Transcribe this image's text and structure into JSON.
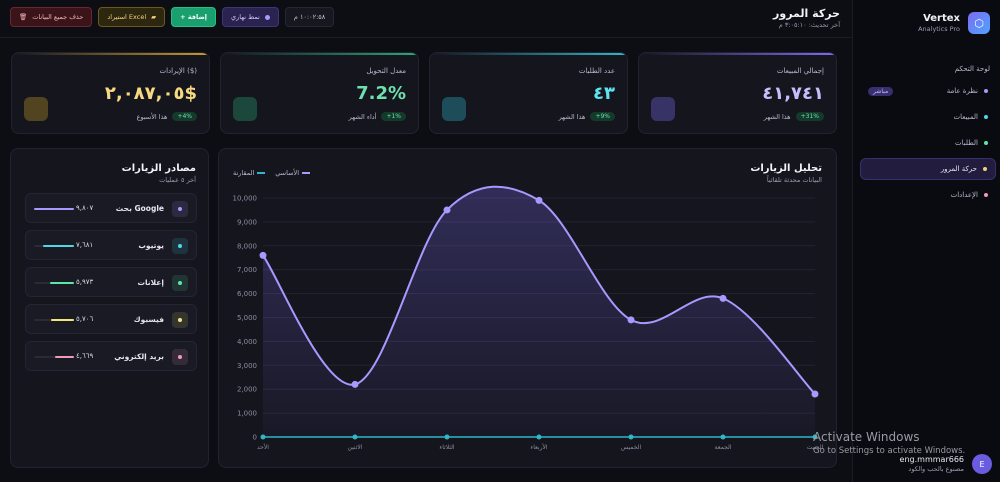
{
  "brand": {
    "name": "Vertex",
    "subtitle": "Analytics Pro"
  },
  "nav": {
    "heading": "لوحة التحكم",
    "items": [
      {
        "label": "نظرة عامة",
        "dot": "#a799ff",
        "badge": "مباشر"
      },
      {
        "label": "المبيعات",
        "dot": "#4dd8e6"
      },
      {
        "label": "الطلبات",
        "dot": "#5ee6a8"
      },
      {
        "label": "حركة المرور",
        "dot": "#f3d27a",
        "active": true
      },
      {
        "label": "الإعدادات",
        "dot": "#f09ab8"
      }
    ]
  },
  "user": {
    "name": "eng.mmmar666",
    "role": "مصنوع بالحب والكود",
    "initial": "E"
  },
  "header": {
    "title": "حركة المرور",
    "updated": "آخر تحديث: ٣:٠٥:١٠ م"
  },
  "toolbar": {
    "time": "١٠:٠٢:٥٨ م",
    "mode_label": "نمط نهاري",
    "add_label": "+ إضافة",
    "excel_label": "استيراد Excel",
    "clear_label": "حذف جميع البيانات"
  },
  "kpis": [
    {
      "label": "إجمالي المبيعات",
      "value": "٤١,٧٤١",
      "badge": "+31%",
      "note": "هذا الشهر",
      "color": "#c9bdfd",
      "accent": "#7c6cf0"
    },
    {
      "label": "عدد الطلبات",
      "value": "٤٣",
      "badge": "+9%",
      "note": "هذا الشهر",
      "color": "#5fe3ef",
      "accent": "#2fb7c8"
    },
    {
      "label": "معدل التحويل",
      "value": "7.2%",
      "badge": "+1%",
      "note": "أداء الشهر",
      "color": "#6ee0ad",
      "accent": "#2aa878"
    },
    {
      "label": "الإيرادات ($)",
      "value": "٢,٠٨٧,٠٥$",
      "badge": "+4%",
      "note": "هذا الأسبوع",
      "color": "#f6d980",
      "accent": "#c79a2a"
    }
  ],
  "sources": {
    "title": "مصادر الزيارات",
    "subtitle": "آخر ٥ عمليات",
    "items": [
      {
        "name": "بحث Google",
        "value": "٩,٨٠٧",
        "color": "#a799ff",
        "share": 1.0
      },
      {
        "name": "يوتيوب",
        "value": "٧,٦٨١",
        "color": "#4dd8e6",
        "share": 0.78
      },
      {
        "name": "إعلانات",
        "value": "٥,٩٧٣",
        "color": "#5ee6a8",
        "share": 0.61
      },
      {
        "name": "فيسبوك",
        "value": "٥,٧٠٦",
        "color": "#f3e57a",
        "share": 0.58
      },
      {
        "name": "بريد إلكتروني",
        "value": "٤,٦٦٩",
        "color": "#f09ab8",
        "share": 0.48
      }
    ]
  },
  "chart_panel": {
    "title": "تحليل الزيارات",
    "subtitle": "البيانات محدثة تلقائياً",
    "legend": [
      {
        "label": "الأساسي",
        "color": "#a799ff"
      },
      {
        "label": "المقارنة",
        "color": "#2fb7c8"
      }
    ]
  },
  "chart_data": {
    "type": "area",
    "categories": [
      "الأحد",
      "الاثنين",
      "الثلاثاء",
      "الأربعاء",
      "الخميس",
      "الجمعة",
      "السبت"
    ],
    "series": [
      {
        "name": "الأساسي",
        "values": [
          7600,
          2200,
          9500,
          9900,
          4900,
          5800,
          1800
        ],
        "color": "#a799ff"
      },
      {
        "name": "المقارنة",
        "values": [
          0,
          0,
          0,
          0,
          0,
          0,
          0
        ],
        "color": "#2fb7c8"
      }
    ],
    "ylim": [
      0,
      10000
    ],
    "yticks": [
      "0",
      "1,000",
      "2,000",
      "3,000",
      "4,000",
      "5,000",
      "6,000",
      "7,000",
      "8,000",
      "9,000",
      "10,000"
    ],
    "grid": true,
    "legend_position": "top-left"
  },
  "watermark": {
    "title": "Activate Windows",
    "subtitle": "Go to Settings to activate Windows."
  }
}
